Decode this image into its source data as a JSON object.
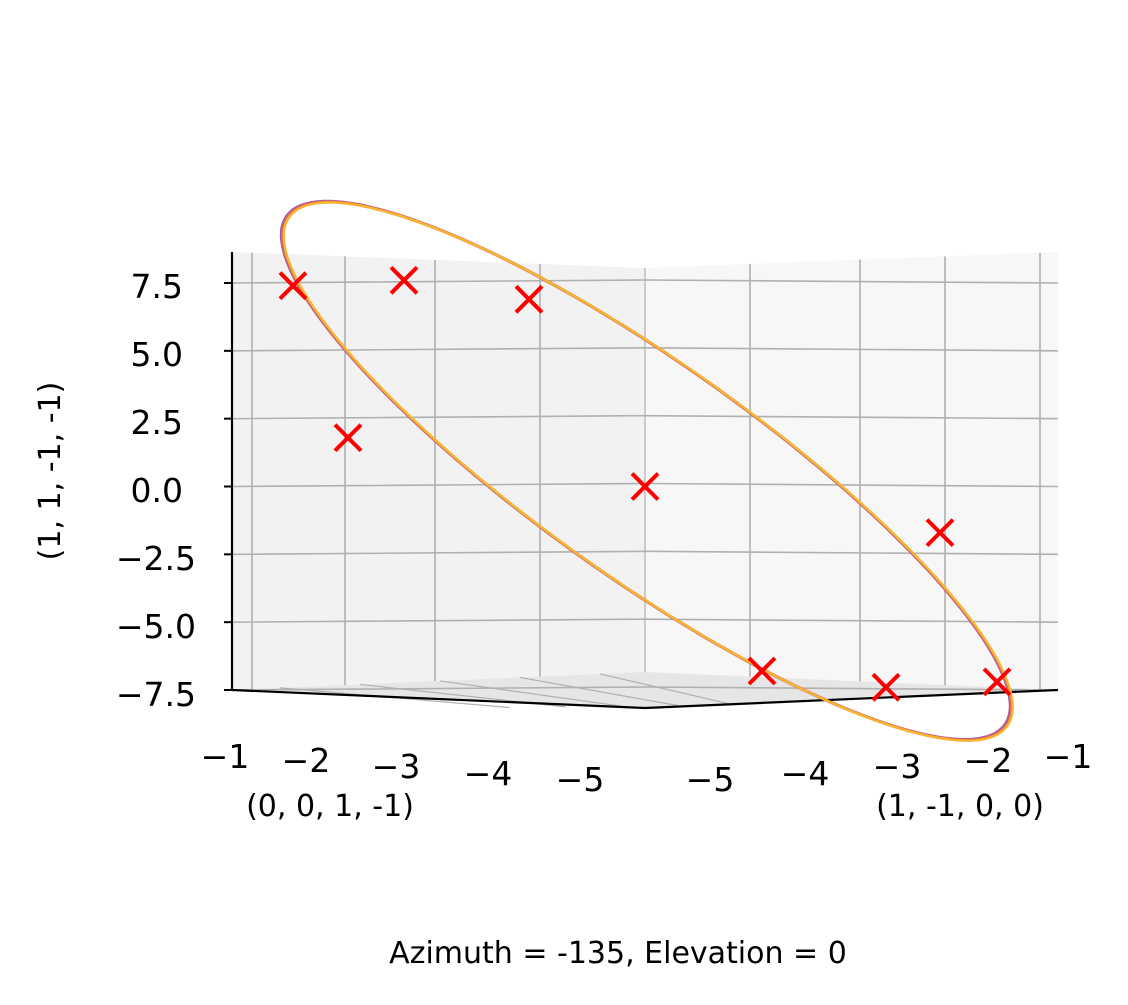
{
  "chart_data": {
    "type": "scatter",
    "projection": "3d",
    "caption": "Azimuth = -135, Elevation = 0",
    "view": {
      "azimuth": -135,
      "elevation": 0
    },
    "grid": true,
    "axes": {
      "left": {
        "label": "(0, 0, 1, -1)",
        "ticks": [
          "−1",
          "−2",
          "−3",
          "−4",
          "−5"
        ]
      },
      "right": {
        "label": "(1, -1, 0, 0)",
        "ticks": [
          "−5",
          "−4",
          "−3",
          "−2",
          "−1"
        ]
      },
      "vertical": {
        "label": "(1, 1, -1, -1)",
        "ticks": [
          "7.5",
          "5.0",
          "2.5",
          "0.0",
          "−2.5",
          "−5.0",
          "−7.5"
        ],
        "range": [
          -7.5,
          7.5
        ]
      }
    },
    "markers": {
      "symbol": "x",
      "color": "#ff0000",
      "vertical_values": [
        7.4,
        7.6,
        6.9,
        1.8,
        0.0,
        -1.7,
        -6.8,
        -7.4,
        -7.2
      ]
    },
    "curve": {
      "shape": "closed ellipse",
      "colors": [
        "#9b59b6",
        "#e8684a",
        "#f5b731"
      ],
      "vertical_range": [
        -7.5,
        7.6
      ]
    }
  }
}
